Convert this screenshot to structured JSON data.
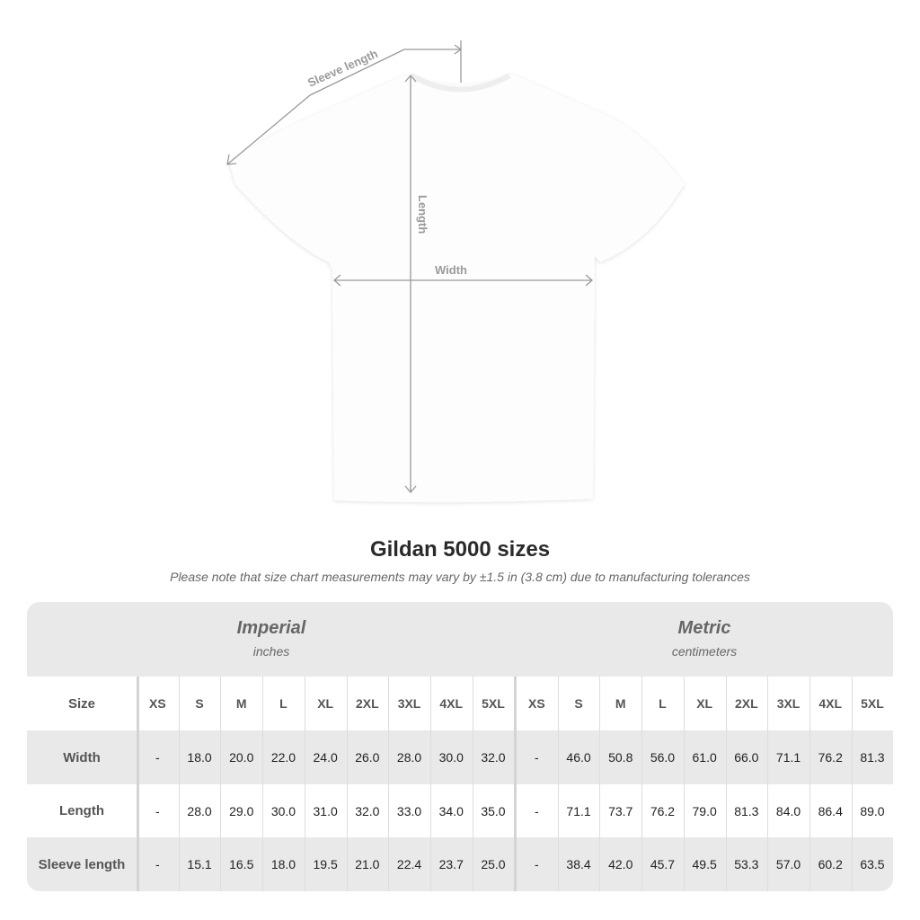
{
  "diagram": {
    "labels": {
      "sleeve": "Sleeve length",
      "length": "Length",
      "width": "Width"
    },
    "line_color": "#9a9a9a"
  },
  "title": "Gildan 5000 sizes",
  "note": "Please note that size chart measurements may vary by ±1.5 in (3.8 cm) due to manufacturing tolerances",
  "table": {
    "imperial": {
      "title": "Imperial",
      "unit": "inches"
    },
    "metric": {
      "title": "Metric",
      "unit": "centimeters"
    },
    "size_label": "Size",
    "sizes": [
      "XS",
      "S",
      "M",
      "L",
      "XL",
      "2XL",
      "3XL",
      "4XL",
      "5XL"
    ],
    "rows": [
      {
        "label": "Width",
        "imperial": [
          "-",
          "18.0",
          "20.0",
          "22.0",
          "24.0",
          "26.0",
          "28.0",
          "30.0",
          "32.0"
        ],
        "metric": [
          "-",
          "46.0",
          "50.8",
          "56.0",
          "61.0",
          "66.0",
          "71.1",
          "76.2",
          "81.3"
        ]
      },
      {
        "label": "Length",
        "imperial": [
          "-",
          "28.0",
          "29.0",
          "30.0",
          "31.0",
          "32.0",
          "33.0",
          "34.0",
          "35.0"
        ],
        "metric": [
          "-",
          "71.1",
          "73.7",
          "76.2",
          "79.0",
          "81.3",
          "84.0",
          "86.4",
          "89.0"
        ]
      },
      {
        "label": "Sleeve length",
        "imperial": [
          "-",
          "15.1",
          "16.5",
          "18.0",
          "19.5",
          "21.0",
          "22.4",
          "23.7",
          "25.0"
        ],
        "metric": [
          "-",
          "38.4",
          "42.0",
          "45.7",
          "49.5",
          "53.3",
          "57.0",
          "60.2",
          "63.5"
        ]
      }
    ]
  }
}
